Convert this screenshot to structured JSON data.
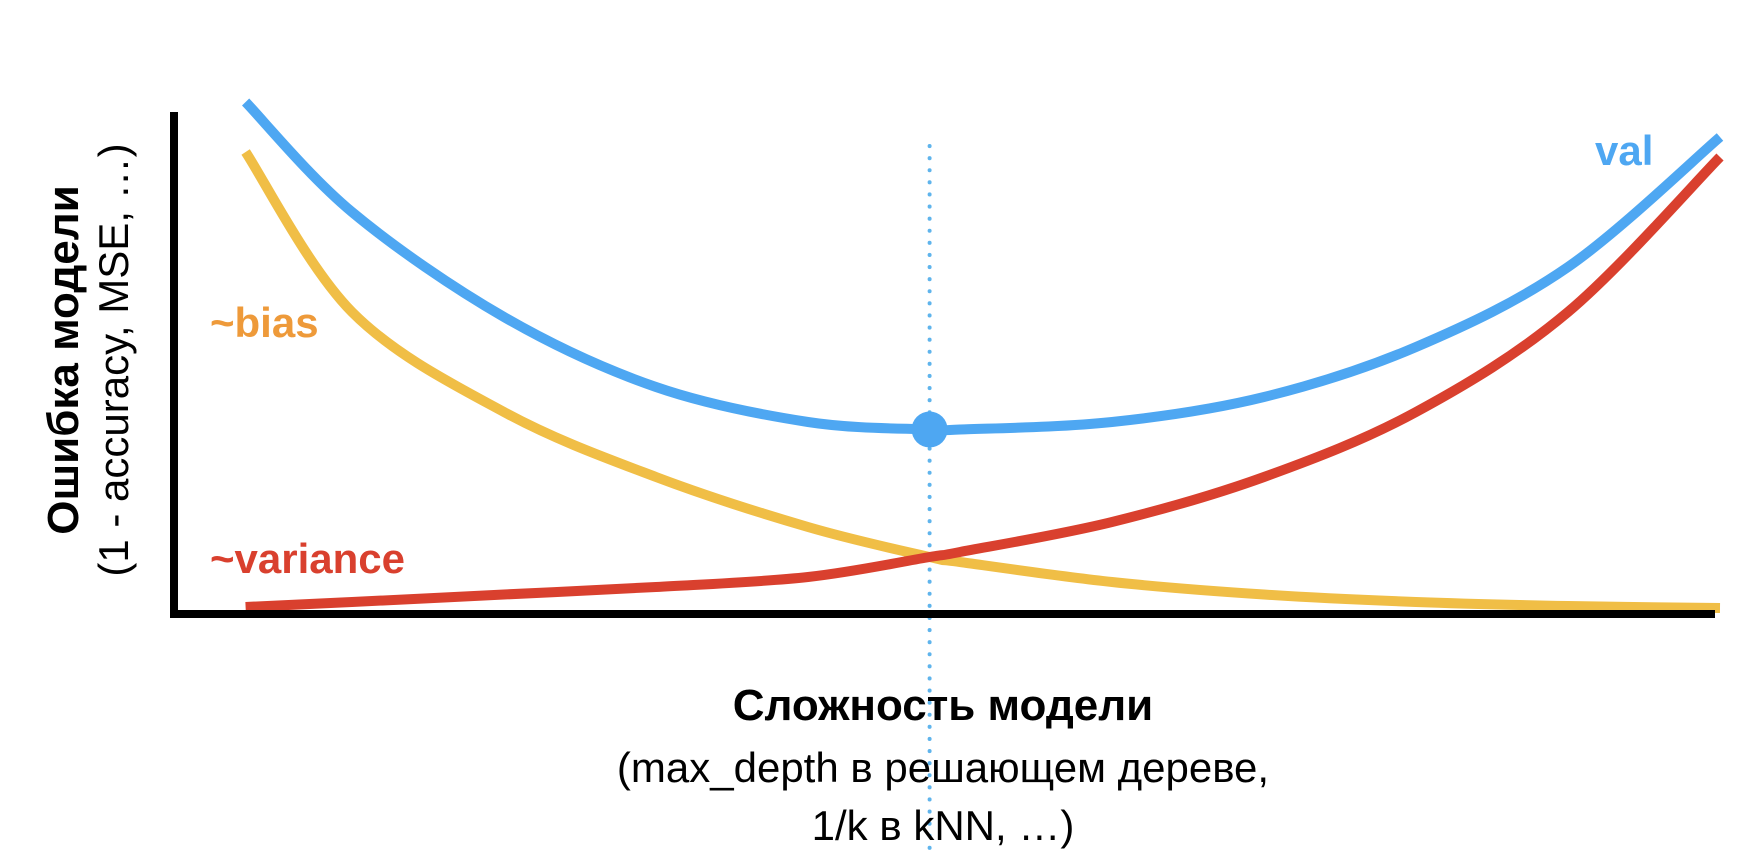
{
  "chart_data": {
    "type": "line",
    "title": "",
    "xlabel": "Сложность модели",
    "xlabel_sub": [
      "(max_depth в решающем дереве,",
      "1/k в kNN, …)"
    ],
    "ylabel": "Ошибка модели",
    "ylabel_sub": "(1 - accuracy, MSE, …)",
    "xlim": [
      0,
      1
    ],
    "ylim": [
      0,
      1
    ],
    "grid": false,
    "ticks": false,
    "x": [
      0.03,
      0.1,
      0.2,
      0.3,
      0.4,
      0.48,
      0.5,
      0.6,
      0.7,
      0.8,
      0.9,
      1.0
    ],
    "series": [
      {
        "name": "val",
        "color": "#4ea7f2",
        "values": [
          1.02,
          0.8,
          0.59,
          0.45,
          0.38,
          0.365,
          0.365,
          0.38,
          0.43,
          0.53,
          0.69,
          0.95
        ]
      },
      {
        "name": "~bias",
        "color": "#f0be46",
        "values": [
          0.92,
          0.6,
          0.4,
          0.27,
          0.17,
          0.11,
          0.1,
          0.06,
          0.035,
          0.02,
          0.012,
          0.008
        ]
      },
      {
        "name": "~variance",
        "color": "#d9402e",
        "values": [
          0.01,
          0.02,
          0.035,
          0.05,
          0.07,
          0.11,
          0.12,
          0.18,
          0.27,
          0.4,
          0.6,
          0.91
        ]
      }
    ],
    "annotations": [
      {
        "type": "vline",
        "x": 0.48,
        "style": "dotted",
        "color": "#5fb4ec"
      },
      {
        "type": "marker",
        "x": 0.48,
        "y": 0.365,
        "color": "#4ea7f2"
      }
    ]
  }
}
